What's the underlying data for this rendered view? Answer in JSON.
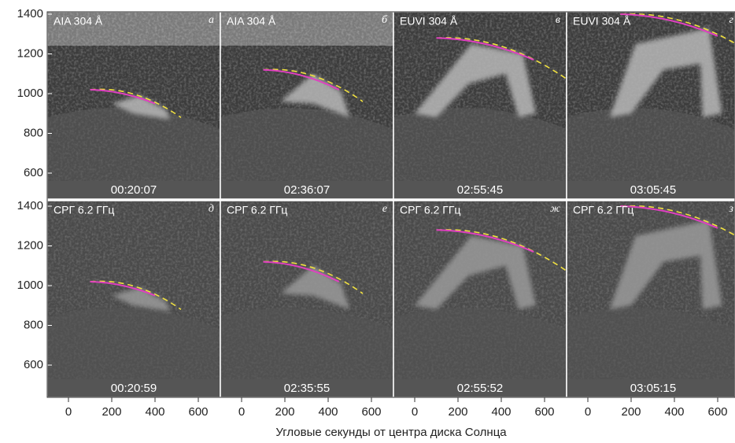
{
  "panels": [
    {
      "instrument": "AIA 304 Å",
      "letter": "а",
      "time": "00:20:07"
    },
    {
      "instrument": "AIA 304 Å",
      "letter": "б",
      "time": "02:36:07"
    },
    {
      "instrument": "EUVI 304 Å",
      "letter": "в",
      "time": "02:55:45"
    },
    {
      "instrument": "EUVI 304 Å",
      "letter": "г",
      "time": "03:05:45"
    },
    {
      "instrument": "СРГ 6.2 ГГц",
      "letter": "д",
      "time": "00:20:59"
    },
    {
      "instrument": "СРГ 6.2 ГГц",
      "letter": "е",
      "time": "02:35:55"
    },
    {
      "instrument": "СРГ 6.2 ГГц",
      "letter": "ж",
      "time": "02:55:52"
    },
    {
      "instrument": "СРГ 6.2 ГГц",
      "letter": "з",
      "time": "03:05:15"
    }
  ],
  "y_axis": {
    "ticks": [
      600,
      800,
      1000,
      1200,
      1400
    ]
  },
  "x_axis": {
    "ticks": [
      0,
      200,
      400,
      600
    ],
    "label": "Угловые секунды от центра диска Солнца"
  }
}
